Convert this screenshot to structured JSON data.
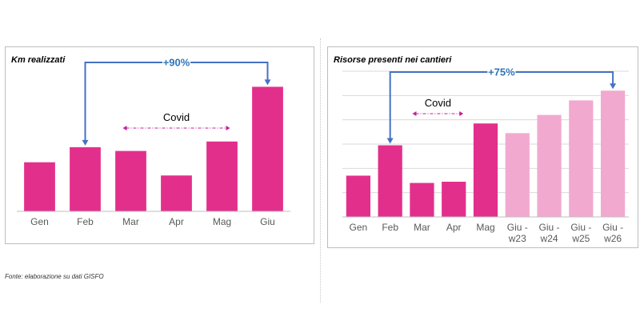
{
  "source_note": "Fonte: elaborazione su dati GISFO",
  "chart_data": [
    {
      "type": "bar",
      "title": "Km realizzati",
      "categories": [
        "Gen",
        "Feb",
        "Mar",
        "Apr",
        "Mag",
        "Giu"
      ],
      "values": [
        26,
        34,
        32,
        19,
        37,
        66
      ],
      "ylim": [
        0,
        70
      ],
      "grid": false,
      "colors": [
        "#E32F8C",
        "#E32F8C",
        "#E32F8C",
        "#E32F8C",
        "#E32F8C",
        "#E32F8C"
      ],
      "comparison": {
        "from": "Feb",
        "to": "Giu",
        "label": "+90%"
      },
      "covid_span": {
        "from": "Mar",
        "to": "Mag",
        "label": "Covid"
      }
    },
    {
      "type": "bar",
      "title": "Risorse presenti nei cantieri",
      "categories": [
        "Gen",
        "Feb",
        "Mar",
        "Apr",
        "Mag",
        "Giu - w23",
        "Giu - w24",
        "Giu - w25",
        "Giu - w26"
      ],
      "values": [
        17,
        29.5,
        14,
        14.5,
        38.5,
        34.5,
        42,
        48,
        52
      ],
      "ylim": [
        0,
        60
      ],
      "grid": true,
      "colors": [
        "#E32F8C",
        "#E32F8C",
        "#E32F8C",
        "#E32F8C",
        "#E32F8C",
        "#F2A9CF",
        "#F2A9CF",
        "#F2A9CF",
        "#F2A9CF"
      ],
      "comparison": {
        "from": "Feb",
        "to": "Giu - w26",
        "label": "+75%"
      },
      "covid_span": {
        "from": "Mar",
        "to": "Apr",
        "label": "Covid"
      }
    }
  ],
  "colors": {
    "arrow": "#4472C4",
    "covid_line": "#C0209A",
    "axis": "#bfbfbf",
    "grid": "#d9d9d9"
  }
}
